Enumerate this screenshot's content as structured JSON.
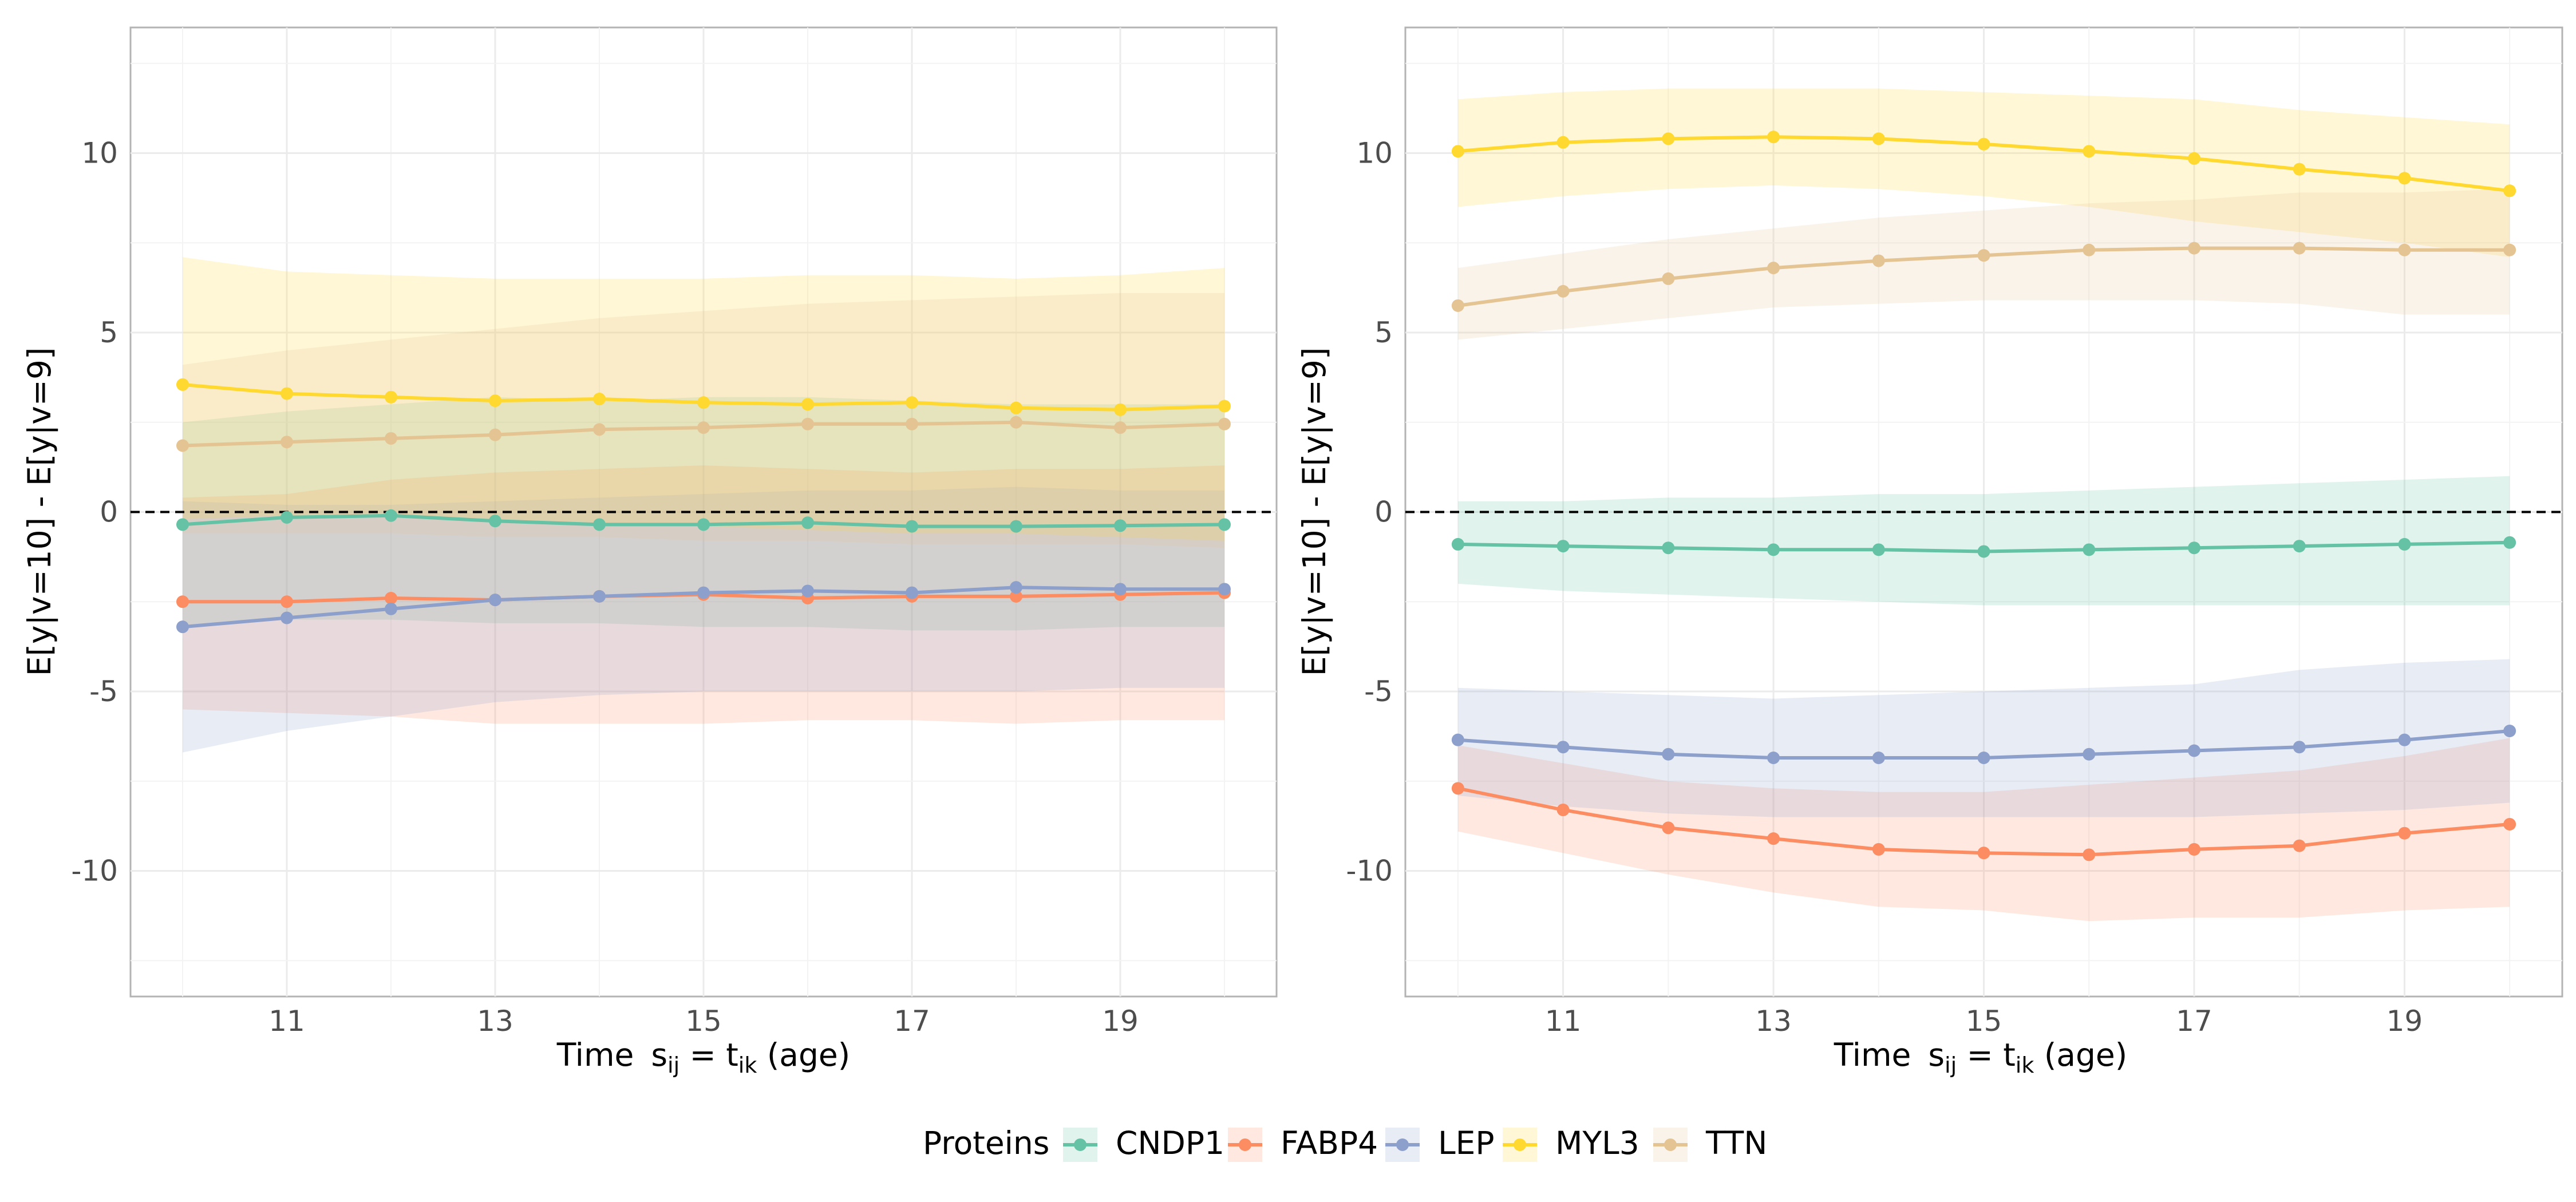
{
  "chart_data": [
    {
      "type": "line",
      "panel": "left",
      "xlabel": "Time  s_ij = t_ik (age)",
      "ylabel": "E[y|v=10] - E[y|v=9]",
      "x": [
        10,
        11,
        12,
        13,
        14,
        15,
        16,
        17,
        18,
        19,
        20
      ],
      "xlim": [
        9.5,
        20.5
      ],
      "ylim": [
        -13.5,
        13.5
      ],
      "x_ticks": [
        11,
        13,
        15,
        17,
        19
      ],
      "y_ticks": [
        -10,
        -5,
        0,
        5,
        10
      ],
      "reference_line": 0,
      "series": [
        {
          "name": "CNDP1",
          "values": [
            -0.35,
            -0.15,
            -0.1,
            -0.25,
            -0.35,
            -0.35,
            -0.3,
            -0.4,
            -0.4,
            -0.38,
            -0.35
          ],
          "lower": [
            -3.2,
            -3.0,
            -3.0,
            -3.1,
            -3.1,
            -3.2,
            -3.2,
            -3.3,
            -3.3,
            -3.2,
            -3.2
          ],
          "upper": [
            2.5,
            2.8,
            3.0,
            3.2,
            3.1,
            3.2,
            3.2,
            3.1,
            3.0,
            3.0,
            3.0
          ]
        },
        {
          "name": "FABP4",
          "values": [
            -2.5,
            -2.5,
            -2.4,
            -2.45,
            -2.35,
            -2.3,
            -2.4,
            -2.35,
            -2.35,
            -2.3,
            -2.25
          ],
          "lower": [
            -5.5,
            -5.6,
            -5.7,
            -5.9,
            -5.9,
            -5.9,
            -5.8,
            -5.8,
            -5.9,
            -5.8,
            -5.8
          ],
          "upper": [
            0.4,
            0.5,
            0.9,
            1.1,
            1.2,
            1.3,
            1.2,
            1.1,
            1.2,
            1.2,
            1.3
          ]
        },
        {
          "name": "LEP",
          "values": [
            -3.2,
            -2.95,
            -2.7,
            -2.45,
            -2.35,
            -2.25,
            -2.2,
            -2.25,
            -2.1,
            -2.15,
            -2.15
          ],
          "lower": [
            -6.7,
            -6.1,
            -5.7,
            -5.3,
            -5.1,
            -5.0,
            -5.0,
            -5.0,
            -5.0,
            -4.9,
            -4.9
          ],
          "upper": [
            0.3,
            0.2,
            0.2,
            0.3,
            0.4,
            0.5,
            0.6,
            0.6,
            0.7,
            0.6,
            0.6
          ]
        },
        {
          "name": "MYL3",
          "values": [
            3.55,
            3.3,
            3.2,
            3.1,
            3.15,
            3.05,
            3.0,
            3.05,
            2.9,
            2.85,
            2.95
          ],
          "lower": [
            -0.2,
            -0.1,
            -0.1,
            -0.2,
            -0.3,
            -0.4,
            -0.5,
            -0.6,
            -0.6,
            -0.7,
            -0.8
          ],
          "upper": [
            7.1,
            6.7,
            6.6,
            6.5,
            6.5,
            6.5,
            6.6,
            6.6,
            6.5,
            6.6,
            6.8
          ]
        },
        {
          "name": "TTN",
          "values": [
            1.85,
            1.95,
            2.05,
            2.15,
            2.3,
            2.35,
            2.45,
            2.45,
            2.5,
            2.35,
            2.45
          ],
          "lower": [
            -0.6,
            -0.6,
            -0.6,
            -0.7,
            -0.7,
            -0.8,
            -0.8,
            -0.9,
            -0.9,
            -0.9,
            -1.0
          ],
          "upper": [
            4.1,
            4.5,
            4.8,
            5.1,
            5.4,
            5.6,
            5.8,
            5.9,
            6.0,
            6.1,
            6.1
          ]
        }
      ]
    },
    {
      "type": "line",
      "panel": "right",
      "xlabel": "Time  s_ij = t_ik (age)",
      "ylabel": "E[y|v=10] - E[y|v=9]",
      "x": [
        10,
        11,
        12,
        13,
        14,
        15,
        16,
        17,
        18,
        19,
        20
      ],
      "xlim": [
        9.5,
        20.5
      ],
      "ylim": [
        -13.5,
        13.5
      ],
      "x_ticks": [
        11,
        13,
        15,
        17,
        19
      ],
      "y_ticks": [
        -10,
        -5,
        0,
        5,
        10
      ],
      "reference_line": 0,
      "series": [
        {
          "name": "CNDP1",
          "values": [
            -0.9,
            -0.95,
            -1.0,
            -1.05,
            -1.05,
            -1.1,
            -1.05,
            -1.0,
            -0.95,
            -0.9,
            -0.85
          ],
          "lower": [
            -2.0,
            -2.2,
            -2.3,
            -2.4,
            -2.5,
            -2.6,
            -2.6,
            -2.6,
            -2.6,
            -2.6,
            -2.6
          ],
          "upper": [
            0.3,
            0.3,
            0.4,
            0.4,
            0.5,
            0.5,
            0.6,
            0.7,
            0.8,
            0.9,
            1.0
          ]
        },
        {
          "name": "FABP4",
          "values": [
            -7.7,
            -8.3,
            -8.8,
            -9.1,
            -9.4,
            -9.5,
            -9.55,
            -9.4,
            -9.3,
            -8.95,
            -8.7
          ],
          "lower": [
            -8.9,
            -9.5,
            -10.1,
            -10.6,
            -11.0,
            -11.1,
            -11.4,
            -11.3,
            -11.3,
            -11.1,
            -11.0
          ],
          "upper": [
            -6.5,
            -7.0,
            -7.5,
            -7.7,
            -7.8,
            -7.8,
            -7.6,
            -7.4,
            -7.2,
            -6.8,
            -6.3
          ]
        },
        {
          "name": "LEP",
          "values": [
            -6.35,
            -6.55,
            -6.75,
            -6.85,
            -6.85,
            -6.85,
            -6.75,
            -6.65,
            -6.55,
            -6.35,
            -6.1
          ],
          "lower": [
            -7.9,
            -8.2,
            -8.4,
            -8.5,
            -8.5,
            -8.5,
            -8.5,
            -8.5,
            -8.4,
            -8.3,
            -8.1
          ],
          "upper": [
            -4.9,
            -5.0,
            -5.1,
            -5.2,
            -5.1,
            -5.0,
            -4.9,
            -4.8,
            -4.4,
            -4.2,
            -4.1
          ]
        },
        {
          "name": "MYL3",
          "values": [
            10.05,
            10.3,
            10.4,
            10.45,
            10.4,
            10.25,
            10.05,
            9.85,
            9.55,
            9.3,
            8.95
          ],
          "lower": [
            8.5,
            8.8,
            9.0,
            9.1,
            9.0,
            8.8,
            8.5,
            8.1,
            7.8,
            7.5,
            7.1
          ],
          "upper": [
            11.5,
            11.7,
            11.8,
            11.8,
            11.8,
            11.7,
            11.6,
            11.5,
            11.2,
            11.0,
            10.8
          ]
        },
        {
          "name": "TTN",
          "values": [
            5.75,
            6.15,
            6.5,
            6.8,
            7.0,
            7.15,
            7.3,
            7.35,
            7.35,
            7.3,
            7.3
          ],
          "lower": [
            4.8,
            5.1,
            5.4,
            5.7,
            5.8,
            5.9,
            5.9,
            5.9,
            5.8,
            5.5,
            5.5
          ],
          "upper": [
            6.8,
            7.2,
            7.6,
            7.9,
            8.2,
            8.4,
            8.6,
            8.7,
            8.9,
            8.9,
            9.0
          ]
        }
      ]
    }
  ],
  "legend": {
    "title": "Proteins",
    "placement": "bottom",
    "entries": [
      {
        "name": "CNDP1",
        "color": "#66c2a5"
      },
      {
        "name": "FABP4",
        "color": "#fc8d62"
      },
      {
        "name": "LEP",
        "color": "#8da0cb"
      },
      {
        "name": "MYL3",
        "color": "#ffd92f"
      },
      {
        "name": "TTN",
        "color": "#e5c494"
      }
    ]
  },
  "xlabel_parts": {
    "time": "Time",
    "s": "s",
    "s_sub": "ij",
    "eq": " = t",
    "t_sub": "ik",
    "suffix": " (age)"
  },
  "colors": {
    "CNDP1": "#66c2a5",
    "FABP4": "#fc8d62",
    "LEP": "#8da0cb",
    "MYL3": "#ffd92f",
    "TTN": "#e5c494"
  }
}
